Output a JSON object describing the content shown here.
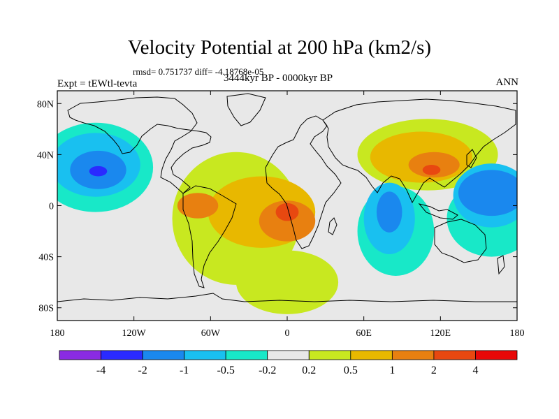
{
  "header": {
    "title": "Velocity Potential at 200 hPa (km2/s)",
    "stats": "rmsd= 0.751737 diff= -4.18768e-05",
    "experiment": "Expt = tEWtl-tevta",
    "period": "3444kyr BP - 0000kyr BP",
    "season": "ANN"
  },
  "map": {
    "projection": "cylindrical equidistant",
    "lon_range": [
      -180,
      180
    ],
    "lat_range": [
      -90,
      90
    ],
    "lon_ticks": [
      {
        "value": -180,
        "label": "180"
      },
      {
        "value": -120,
        "label": "120W"
      },
      {
        "value": -60,
        "label": "60W"
      },
      {
        "value": 0,
        "label": "0"
      },
      {
        "value": 60,
        "label": "60E"
      },
      {
        "value": 120,
        "label": "120E"
      },
      {
        "value": 180,
        "label": "180"
      }
    ],
    "lat_ticks": [
      {
        "value": 80,
        "label": "80N"
      },
      {
        "value": 40,
        "label": "40N"
      },
      {
        "value": 0,
        "label": "0"
      },
      {
        "value": -40,
        "label": "40S"
      },
      {
        "value": -80,
        "label": "80S"
      }
    ],
    "background_color": "#e8e8e8"
  },
  "colorbar": {
    "colors": [
      "#8a2be2",
      "#2a2aff",
      "#1a88ee",
      "#19c0f0",
      "#18e8c8",
      "#e8e8e8",
      "#c8e820",
      "#e8b800",
      "#e88010",
      "#e84810",
      "#e80808"
    ],
    "labels": [
      "-4",
      "-2",
      "-1",
      "-0.5",
      "-0.2",
      "0.2",
      "0.5",
      "1",
      "2",
      "4"
    ]
  },
  "fields": [
    {
      "level": "0.2",
      "color": "#c8e820",
      "lon": -40,
      "lat": -10,
      "rx": 50,
      "ry": 52
    },
    {
      "level": "0.2",
      "color": "#c8e820",
      "lon": 0,
      "lat": -60,
      "rx": 40,
      "ry": 25
    },
    {
      "level": "0.2",
      "color": "#c8e820",
      "lon": 110,
      "lat": 40,
      "rx": 55,
      "ry": 28
    },
    {
      "level": "0.5",
      "color": "#e8b800",
      "lon": -20,
      "lat": -5,
      "rx": 42,
      "ry": 28
    },
    {
      "level": "0.5",
      "color": "#e8b800",
      "lon": 105,
      "lat": 38,
      "rx": 40,
      "ry": 20
    },
    {
      "level": "1",
      "color": "#e88010",
      "lon": -70,
      "lat": 0,
      "rx": 16,
      "ry": 10
    },
    {
      "level": "1",
      "color": "#e88010",
      "lon": 0,
      "lat": -12,
      "rx": 22,
      "ry": 16
    },
    {
      "level": "1",
      "color": "#e88010",
      "lon": 115,
      "lat": 32,
      "rx": 20,
      "ry": 10
    },
    {
      "level": "2",
      "color": "#e84810",
      "lon": 0,
      "lat": -5,
      "rx": 9,
      "ry": 7
    },
    {
      "level": "2",
      "color": "#e84810",
      "lon": 113,
      "lat": 28,
      "rx": 7,
      "ry": 4
    },
    {
      "level": "-0.2",
      "color": "#18e8c8",
      "lon": -150,
      "lat": 30,
      "rx": 45,
      "ry": 35
    },
    {
      "level": "-0.2",
      "color": "#18e8c8",
      "lon": 85,
      "lat": -20,
      "rx": 30,
      "ry": 35
    },
    {
      "level": "-0.2",
      "color": "#18e8c8",
      "lon": 160,
      "lat": -10,
      "rx": 35,
      "ry": 30
    },
    {
      "level": "-0.5",
      "color": "#19c0f0",
      "lon": -150,
      "lat": 32,
      "rx": 35,
      "ry": 25
    },
    {
      "level": "-0.5",
      "color": "#19c0f0",
      "lon": 80,
      "lat": -10,
      "rx": 20,
      "ry": 28
    },
    {
      "level": "-0.5",
      "color": "#19c0f0",
      "lon": 160,
      "lat": 8,
      "rx": 30,
      "ry": 25
    },
    {
      "level": "-1",
      "color": "#1a88ee",
      "lon": -148,
      "lat": 28,
      "rx": 22,
      "ry": 15
    },
    {
      "level": "-1",
      "color": "#1a88ee",
      "lon": 80,
      "lat": -5,
      "rx": 10,
      "ry": 16
    },
    {
      "level": "-1",
      "color": "#1a88ee",
      "lon": 160,
      "lat": 10,
      "rx": 26,
      "ry": 18
    },
    {
      "level": "-2",
      "color": "#2a2aff",
      "lon": -148,
      "lat": 27,
      "rx": 7,
      "ry": 4
    }
  ]
}
